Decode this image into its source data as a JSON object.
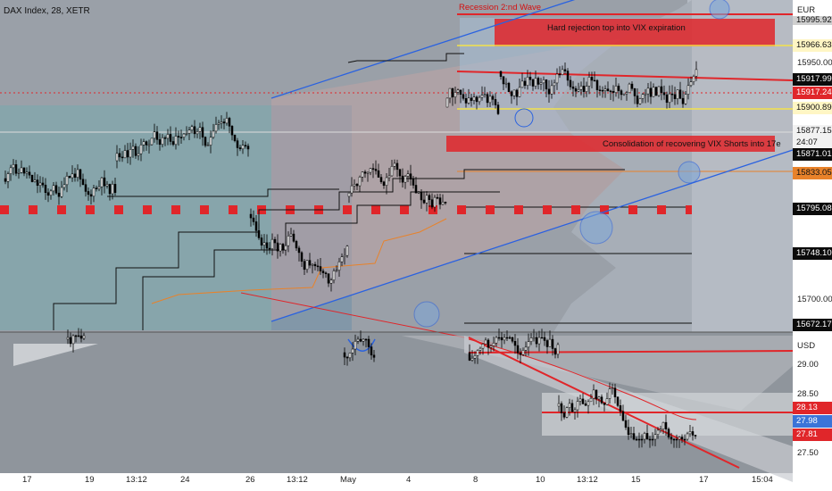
{
  "header": {
    "symbol_title": "DAX Index, 28, XETR"
  },
  "annotations": {
    "recession": "Recession 2:nd Wave",
    "rejection": "Hard rejection top into VIX expiration",
    "consolidation": "Consolidation of recovering VIX Shorts into 17e"
  },
  "upper_axis": {
    "currency": "EUR",
    "ticks": [
      "15950.00",
      "15700.00"
    ],
    "tags": [
      {
        "value": "15995.92",
        "style": "gray"
      },
      {
        "value": "15966.63",
        "style": "yellow"
      },
      {
        "value": "15917.99",
        "style": "black"
      },
      {
        "value": "15917.24",
        "style": "red"
      },
      {
        "value": "15900.89",
        "style": "yellow"
      },
      {
        "value": "15877.15",
        "style": "white"
      },
      {
        "value": "24:07",
        "style": "white"
      },
      {
        "value": "15871.01",
        "style": "black"
      },
      {
        "value": "15833.05",
        "style": "orange"
      },
      {
        "value": "15795.08",
        "style": "black"
      },
      {
        "value": "15748.10",
        "style": "black"
      },
      {
        "value": "15672.17",
        "style": "black"
      }
    ]
  },
  "lower_axis": {
    "currency": "USD",
    "ticks": [
      "29.00",
      "28.50",
      "27.50"
    ],
    "tags": [
      {
        "value": "28.13",
        "style": "red"
      },
      {
        "value": "27.98",
        "style": "blue"
      },
      {
        "value": "27.81",
        "style": "red"
      }
    ]
  },
  "x_axis": {
    "labels": [
      "17",
      "19",
      "13:12",
      "24",
      "26",
      "13:12",
      "May",
      "4",
      "8",
      "10",
      "13:12",
      "15",
      "17",
      "15:04"
    ]
  },
  "colors": {
    "background": "#9aa0a8",
    "up_candle": "#ffffff",
    "down_candle": "#000000",
    "resistance": "#e0262a",
    "channel": "#2a62e0",
    "yellow_level": "#f3e24a",
    "orange_line": "#e8822a"
  }
}
